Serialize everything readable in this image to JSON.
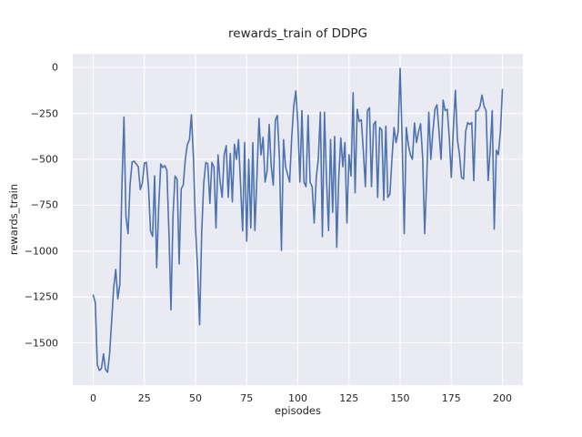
{
  "style": {
    "figure_background": "#ffffff",
    "axes_background": "#eaeaf2",
    "grid_color": "#ffffff",
    "line_color": "#4c72b0",
    "text_color": "#262626"
  },
  "chart_data": {
    "type": "line",
    "title": "rewards_train of DDPG",
    "xlabel": "episodes",
    "ylabel": "rewards_train",
    "xlim": [
      -10,
      210
    ],
    "ylim": [
      -1730,
      75
    ],
    "xticks": [
      0,
      25,
      50,
      75,
      100,
      125,
      150,
      175,
      200
    ],
    "yticks": [
      0,
      -250,
      -500,
      -750,
      -1000,
      -1250,
      -1500
    ],
    "grid": true,
    "legend": false,
    "series": [
      {
        "name": "rewards_train",
        "x_start": 0,
        "x_step": 1,
        "values": [
          -1240,
          -1280,
          -1620,
          -1650,
          -1640,
          -1560,
          -1645,
          -1660,
          -1560,
          -1380,
          -1200,
          -1100,
          -1260,
          -1180,
          -660,
          -270,
          -810,
          -905,
          -640,
          -515,
          -510,
          -525,
          -540,
          -665,
          -630,
          -520,
          -517,
          -650,
          -890,
          -920,
          -590,
          -1090,
          -760,
          -525,
          -545,
          -535,
          -560,
          -900,
          -1320,
          -800,
          -591,
          -610,
          -1070,
          -660,
          -640,
          -500,
          -420,
          -393,
          -257,
          -500,
          -872,
          -1100,
          -1401,
          -900,
          -633,
          -517,
          -525,
          -740,
          -517,
          -542,
          -874,
          -476,
          -620,
          -707,
          -476,
          -426,
          -707,
          -468,
          -732,
          -418,
          -500,
          -393,
          -633,
          -890,
          -409,
          -946,
          -500,
          -874,
          -410,
          -888,
          -600,
          -277,
          -476,
          -380,
          -624,
          -560,
          -311,
          -541,
          -641,
          -286,
          -261,
          -492,
          -996,
          -393,
          -541,
          -583,
          -624,
          -380,
          -211,
          -128,
          -300,
          -624,
          -235,
          -624,
          -649,
          -261,
          -624,
          -650,
          -847,
          -600,
          -500,
          -244,
          -921,
          -244,
          -600,
          -888,
          -392,
          -789,
          -376,
          -979,
          -600,
          -384,
          -541,
          -409,
          -847,
          -475,
          -591,
          -137,
          -682,
          -228,
          -294,
          -285,
          -450,
          -649,
          -236,
          -219,
          -649,
          -311,
          -294,
          -707,
          -327,
          -340,
          -723,
          -319,
          -707,
          -690,
          -500,
          -327,
          -409,
          -350,
          -5,
          -409,
          -905,
          -327,
          -420,
          -475,
          -500,
          -302,
          -409,
          -350,
          -307,
          -492,
          -905,
          -600,
          -244,
          -500,
          -350,
          -228,
          -203,
          -350,
          -500,
          -178,
          -235,
          -228,
          -376,
          -599,
          -335,
          -125,
          -393,
          -475,
          -599,
          -608,
          -350,
          -300,
          -310,
          -300,
          -616,
          -235,
          -236,
          -211,
          -150,
          -211,
          -235,
          -616,
          -451,
          -235,
          -880,
          -451,
          -475,
          -350,
          -120
        ]
      }
    ]
  }
}
